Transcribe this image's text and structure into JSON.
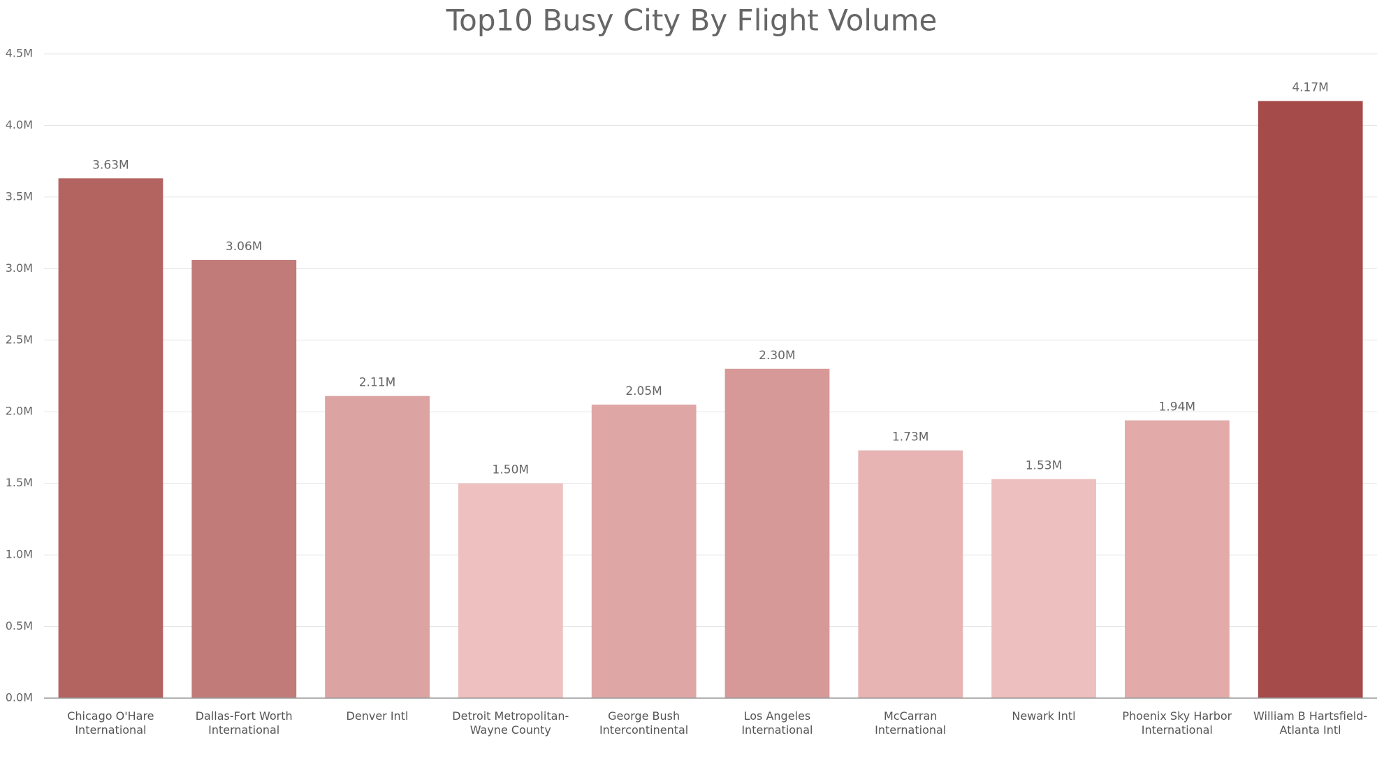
{
  "chart_data": {
    "type": "bar",
    "title": "Top10 Busy City By Flight Volume",
    "categories": [
      "Chicago O'Hare International",
      "Dallas-Fort Worth International",
      "Denver Intl",
      "Detroit Metropolitan-Wayne County",
      "George Bush Intercontinental",
      "Los Angeles International",
      "McCarran International",
      "Newark Intl",
      "Phoenix Sky Harbor International",
      "William B Hartsfield-Atlanta Intl"
    ],
    "values": [
      3.63,
      3.06,
      2.11,
      1.5,
      2.05,
      2.3,
      1.73,
      1.53,
      1.94,
      4.17
    ],
    "value_labels": [
      "3.63M",
      "3.06M",
      "2.11M",
      "1.50M",
      "2.05M",
      "2.30M",
      "1.73M",
      "1.53M",
      "1.94M",
      "4.17M"
    ],
    "colors": [
      "#b36360",
      "#c17b78",
      "#dba3a2",
      "#efc0c0",
      "#dea7a6",
      "#d69998",
      "#e7b4b3",
      "#eebfbf",
      "#e2abaa",
      "#a54b4a"
    ],
    "ylim": [
      0,
      4.5
    ],
    "yticks": [
      {
        "value": 0,
        "label": "0.0M"
      },
      {
        "value": 0.5,
        "label": "0.5M"
      },
      {
        "value": 1,
        "label": "1.0M"
      },
      {
        "value": 1.5,
        "label": "1.5M"
      },
      {
        "value": 2,
        "label": "2.0M"
      },
      {
        "value": 2.5,
        "label": "2.5M"
      },
      {
        "value": 3,
        "label": "3.0M"
      },
      {
        "value": 3.5,
        "label": "3.5M"
      },
      {
        "value": 4,
        "label": "4.0M"
      },
      {
        "value": 4.5,
        "label": "4.5M"
      }
    ],
    "grid": true
  }
}
